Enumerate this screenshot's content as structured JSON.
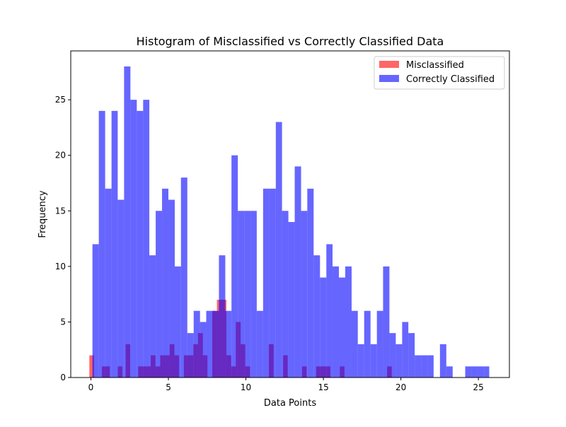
{
  "chart_data": {
    "type": "bar",
    "title": "Histogram of Misclassified vs Correctly Classified Data",
    "xlabel": "Data Points",
    "ylabel": "Frequency",
    "xlim": [
      -1.3,
      27.0
    ],
    "ylim": [
      0,
      29.4
    ],
    "xticks": [
      0,
      5,
      10,
      15,
      20,
      25
    ],
    "yticks": [
      0,
      5,
      10,
      15,
      20,
      25
    ],
    "xtick_labels": [
      "0",
      "5",
      "10",
      "15",
      "20",
      "25"
    ],
    "ytick_labels": [
      "0",
      "5",
      "10",
      "15",
      "20",
      "25"
    ],
    "legend_position": "top-right",
    "grid": false,
    "series": [
      {
        "name": "Misclassified",
        "color": "#ff0000",
        "opacity": 0.6,
        "bins": [
          [
            -0.1,
            0.2,
            2
          ],
          [
            0.2,
            0.71,
            0
          ],
          [
            0.71,
            1.22,
            1
          ],
          [
            1.22,
            1.73,
            0
          ],
          [
            1.73,
            2.03,
            1
          ],
          [
            2.03,
            2.24,
            0
          ],
          [
            2.24,
            2.54,
            3
          ],
          [
            2.54,
            3.05,
            0
          ],
          [
            3.05,
            3.56,
            1
          ],
          [
            3.56,
            3.86,
            1
          ],
          [
            3.86,
            4.17,
            2
          ],
          [
            4.17,
            4.47,
            1
          ],
          [
            4.47,
            4.78,
            2
          ],
          [
            4.78,
            5.08,
            2
          ],
          [
            5.08,
            5.39,
            3
          ],
          [
            5.39,
            5.69,
            2
          ],
          [
            5.69,
            6.0,
            0
          ],
          [
            6.0,
            6.3,
            2
          ],
          [
            6.3,
            6.61,
            2
          ],
          [
            6.61,
            6.91,
            3
          ],
          [
            6.91,
            7.22,
            4
          ],
          [
            7.22,
            7.52,
            2
          ],
          [
            7.52,
            7.83,
            0
          ],
          [
            7.83,
            8.13,
            6
          ],
          [
            8.13,
            8.44,
            7
          ],
          [
            8.44,
            8.74,
            7
          ],
          [
            8.74,
            9.05,
            2
          ],
          [
            9.05,
            9.35,
            1
          ],
          [
            9.35,
            9.66,
            5
          ],
          [
            9.66,
            9.96,
            3
          ],
          [
            9.96,
            10.27,
            1
          ],
          [
            10.27,
            10.57,
            0
          ],
          [
            10.57,
            11.18,
            0
          ],
          [
            11.18,
            11.48,
            0
          ],
          [
            11.48,
            11.79,
            3
          ],
          [
            11.79,
            12.09,
            0
          ],
          [
            12.09,
            12.4,
            0
          ],
          [
            12.4,
            12.7,
            2
          ],
          [
            12.7,
            13.01,
            0
          ],
          [
            13.01,
            13.62,
            0
          ],
          [
            13.62,
            13.92,
            1
          ],
          [
            13.92,
            14.53,
            0
          ],
          [
            14.53,
            14.84,
            1
          ],
          [
            14.84,
            15.14,
            1
          ],
          [
            15.14,
            15.45,
            1
          ],
          [
            15.45,
            15.75,
            0
          ],
          [
            15.75,
            16.06,
            0
          ],
          [
            16.06,
            16.36,
            1
          ],
          [
            16.36,
            18.8,
            0
          ],
          [
            18.8,
            19.11,
            0
          ],
          [
            19.11,
            19.41,
            1
          ]
        ]
      },
      {
        "name": "Correctly Classified",
        "color": "#0000ff",
        "opacity": 0.6,
        "bins": [
          [
            0.1,
            0.51,
            12
          ],
          [
            0.51,
            0.92,
            24
          ],
          [
            0.92,
            1.33,
            17
          ],
          [
            1.33,
            1.73,
            24
          ],
          [
            1.73,
            2.14,
            16
          ],
          [
            2.14,
            2.55,
            28
          ],
          [
            2.55,
            2.96,
            25
          ],
          [
            2.96,
            3.37,
            24
          ],
          [
            3.37,
            3.77,
            25
          ],
          [
            3.77,
            4.18,
            11
          ],
          [
            4.18,
            4.59,
            15
          ],
          [
            4.59,
            5.0,
            17
          ],
          [
            5.0,
            5.41,
            16
          ],
          [
            5.41,
            5.81,
            10
          ],
          [
            5.81,
            6.22,
            18
          ],
          [
            6.22,
            6.63,
            4
          ],
          [
            6.63,
            7.04,
            6
          ],
          [
            7.04,
            7.44,
            5
          ],
          [
            7.44,
            7.85,
            6
          ],
          [
            7.85,
            8.26,
            6
          ],
          [
            8.26,
            8.67,
            11
          ],
          [
            8.67,
            9.07,
            6
          ],
          [
            9.07,
            9.48,
            20
          ],
          [
            9.48,
            9.89,
            15
          ],
          [
            9.89,
            10.3,
            15
          ],
          [
            10.3,
            10.7,
            15
          ],
          [
            10.7,
            11.11,
            6
          ],
          [
            11.11,
            11.52,
            17
          ],
          [
            11.52,
            11.93,
            17
          ],
          [
            11.93,
            12.33,
            23
          ],
          [
            12.33,
            12.74,
            15
          ],
          [
            12.74,
            13.15,
            14
          ],
          [
            13.15,
            13.56,
            19
          ],
          [
            13.56,
            13.96,
            15
          ],
          [
            13.96,
            14.37,
            17
          ],
          [
            14.37,
            14.78,
            11
          ],
          [
            14.78,
            15.19,
            9
          ],
          [
            15.19,
            15.59,
            12
          ],
          [
            15.59,
            16.0,
            10
          ],
          [
            16.0,
            16.41,
            9
          ],
          [
            16.41,
            16.82,
            10
          ],
          [
            16.82,
            17.22,
            6
          ],
          [
            17.22,
            17.63,
            3
          ],
          [
            17.63,
            18.04,
            6
          ],
          [
            18.04,
            18.45,
            3
          ],
          [
            18.45,
            18.85,
            6
          ],
          [
            18.85,
            19.26,
            10
          ],
          [
            19.26,
            19.67,
            4
          ],
          [
            19.67,
            20.08,
            3
          ],
          [
            20.08,
            20.48,
            5
          ],
          [
            20.48,
            20.89,
            4
          ],
          [
            20.89,
            21.3,
            2
          ],
          [
            21.3,
            21.71,
            2
          ],
          [
            21.71,
            22.11,
            2
          ],
          [
            22.11,
            22.52,
            0
          ],
          [
            22.52,
            22.93,
            3
          ],
          [
            22.93,
            23.34,
            1
          ],
          [
            23.34,
            23.74,
            0
          ],
          [
            23.74,
            24.15,
            0
          ],
          [
            24.15,
            24.56,
            1
          ],
          [
            24.56,
            24.97,
            1
          ],
          [
            24.97,
            25.37,
            1
          ],
          [
            25.37,
            25.7,
            1
          ]
        ]
      }
    ]
  }
}
